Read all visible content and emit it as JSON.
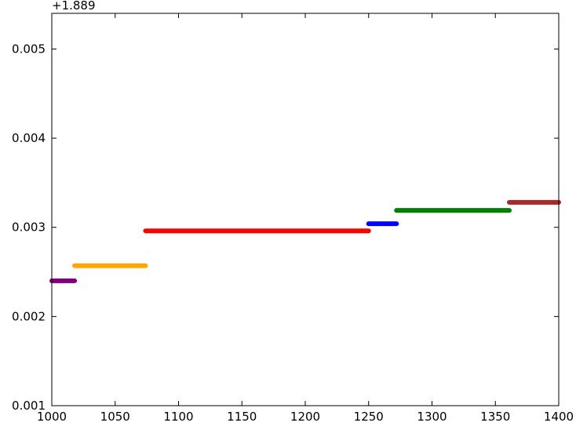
{
  "chart_data": {
    "type": "line",
    "title": "",
    "xlabel": "",
    "ylabel": "",
    "y_offset_label": "+1.889",
    "xlim": [
      1000,
      1400
    ],
    "ylim": [
      0.001,
      0.0054
    ],
    "x_ticks": [
      1000,
      1050,
      1100,
      1150,
      1200,
      1250,
      1300,
      1350,
      1400
    ],
    "x_tick_labels": [
      "1000",
      "1050",
      "1100",
      "1150",
      "1200",
      "1250",
      "1300",
      "1350",
      "1400"
    ],
    "y_ticks": [
      0.001,
      0.002,
      0.003,
      0.004,
      0.005
    ],
    "y_tick_labels": [
      "0.001",
      "0.002",
      "0.003",
      "0.004",
      "0.005"
    ],
    "grid": false,
    "series": [
      {
        "color": "#800080",
        "x": [
          1000,
          1018
        ],
        "y": [
          0.0024,
          0.0024
        ]
      },
      {
        "color": "#ffa500",
        "x": [
          1018,
          1074
        ],
        "y": [
          0.00257,
          0.00257
        ]
      },
      {
        "color": "#ff0000",
        "x": [
          1074,
          1250
        ],
        "y": [
          0.00296,
          0.00296
        ]
      },
      {
        "color": "#0000ff",
        "x": [
          1250,
          1272
        ],
        "y": [
          0.00304,
          0.00304
        ]
      },
      {
        "color": "#008000",
        "x": [
          1272,
          1361
        ],
        "y": [
          0.00319,
          0.00319
        ]
      },
      {
        "color": "#a52a2a",
        "x": [
          1361,
          1400
        ],
        "y": [
          0.00328,
          0.00328
        ]
      }
    ]
  }
}
